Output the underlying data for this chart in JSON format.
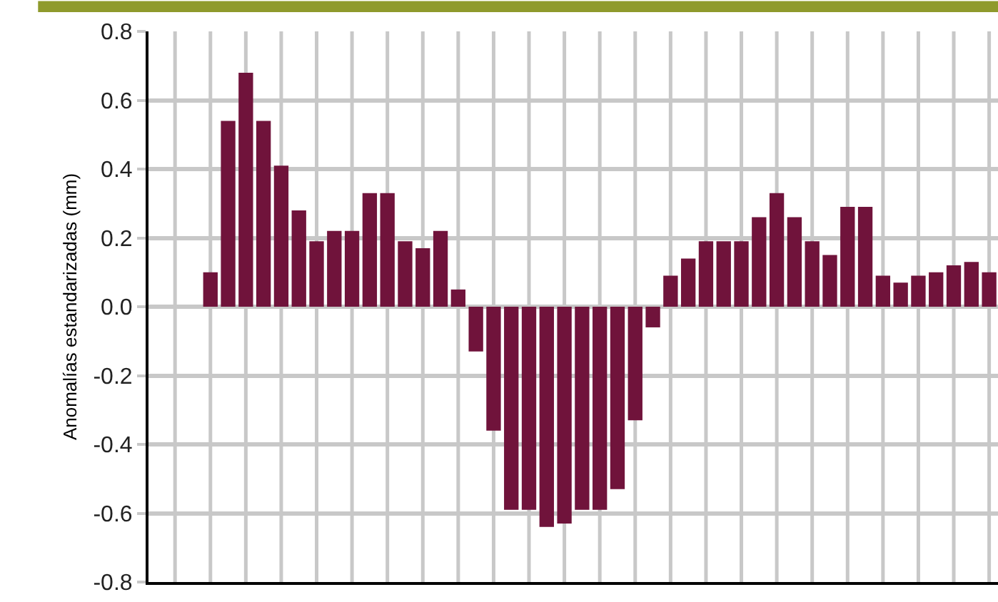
{
  "chart_data": {
    "type": "bar",
    "ylabel": "Anomalías estandarizadas (mm)",
    "categories": [
      null,
      null,
      null,
      null,
      null,
      null,
      null,
      null,
      null,
      null,
      null,
      null,
      null,
      null,
      null,
      null,
      null,
      null,
      null,
      null,
      null,
      null,
      null,
      null,
      null,
      null,
      null,
      null,
      null,
      null,
      null,
      null,
      null,
      null,
      null,
      null,
      null,
      null,
      null,
      null,
      null,
      null,
      null,
      null,
      null,
      null,
      null,
      null
    ],
    "values": [
      null,
      null,
      null,
      0.1,
      0.54,
      0.68,
      0.54,
      0.41,
      0.28,
      0.19,
      0.22,
      0.22,
      0.33,
      0.33,
      0.19,
      0.17,
      0.22,
      0.05,
      -0.13,
      -0.36,
      -0.59,
      -0.59,
      -0.64,
      -0.63,
      -0.59,
      -0.59,
      -0.53,
      -0.33,
      -0.06,
      0.09,
      0.14,
      0.19,
      0.19,
      0.19,
      0.26,
      0.33,
      0.26,
      0.19,
      0.15,
      0.29,
      0.29,
      0.09,
      0.07,
      0.09,
      0.1,
      0.12,
      0.13,
      0.1
    ],
    "color": "#70133b",
    "ylim": [
      -0.8,
      0.8
    ],
    "yticks": [
      {
        "value": -0.8,
        "label": "-0.8"
      },
      {
        "value": -0.6,
        "label": "-0.6"
      },
      {
        "value": -0.4,
        "label": "-0.4"
      },
      {
        "value": -0.2,
        "label": "-0.2"
      },
      {
        "value": 0,
        "label": "0.0"
      },
      {
        "value": 0.2,
        "label": "0.2"
      },
      {
        "value": 0.4,
        "label": "0.4"
      },
      {
        "value": 0.6,
        "label": "0.6"
      },
      {
        "value": 0.8,
        "label": "0.8"
      }
    ],
    "grid": true
  }
}
